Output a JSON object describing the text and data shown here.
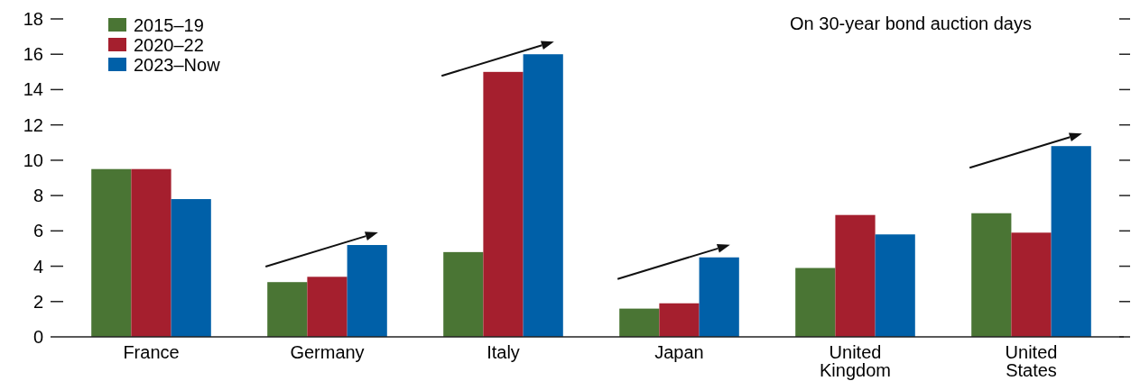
{
  "chart_data": {
    "type": "bar",
    "categories": [
      "France",
      "Germany",
      "Italy",
      "Japan",
      "United Kingdom",
      "United States"
    ],
    "series": [
      {
        "name": "2015–19",
        "color": "#4a7534",
        "values": [
          9.5,
          3.1,
          4.8,
          1.6,
          3.9,
          7.0
        ]
      },
      {
        "name": "2020–22",
        "color": "#a51f2e",
        "values": [
          9.5,
          3.4,
          15,
          1.9,
          6.9,
          5.9
        ]
      },
      {
        "name": "2023–Now",
        "color": "#0060a8",
        "values": [
          7.8,
          5.2,
          16,
          4.5,
          5.8,
          10.8
        ]
      }
    ],
    "ylim": [
      0,
      18
    ],
    "yticks": [
      0,
      2,
      4,
      6,
      8,
      10,
      12,
      14,
      16,
      18
    ],
    "grid": false,
    "legend": "top left",
    "annotations": [
      "On 30-year bond auction days"
    ]
  }
}
